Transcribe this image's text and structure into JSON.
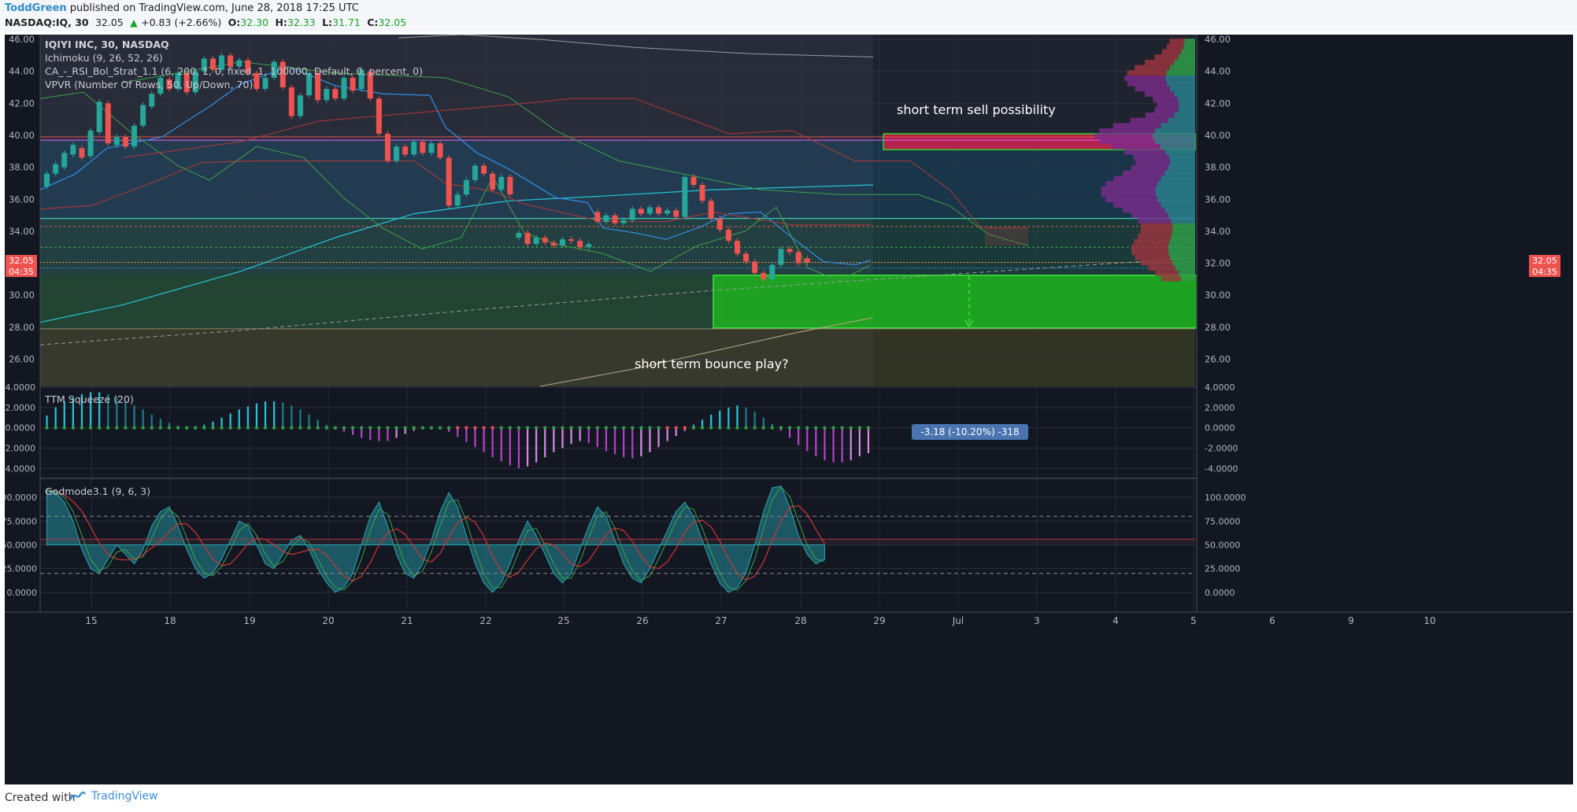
{
  "header": {
    "author": "ToddGreen",
    "published": "published on TradingView.com, June 28, 2018 17:25 UTC",
    "symbol": "NASDAQ:IQ, 30",
    "last": "32.05",
    "change": "+0.83 (+2.66%)",
    "o_label": "O:",
    "o_value": "32.30",
    "h_label": "H:",
    "h_value": "32.33",
    "l_label": "L:",
    "l_value": "31.71",
    "c_label": "C:",
    "c_value": "32.05"
  },
  "legend": {
    "symbol_line": "IQIYI INC, 30, NASDAQ",
    "ichimoku": "Ichimoku (9, 26, 52, 26)",
    "strategy": "CA_-_RSI_Bol_Strat_1.1 (6, 200, 1, 0, fixed, 1, 100000, Default, 0, percent, 0)",
    "vpvr": "VPVR (Number Of Rows, 50, Up/Down, 70)",
    "ttm": "TTM Squeeze (20)",
    "godmode": "Godmode3.1 (9, 6, 3)"
  },
  "annotations": {
    "sell": "short term sell possibility",
    "bounce": "short term bounce play?",
    "measure": "-3.18 (-10.20%) -318",
    "price_badge": "32.05",
    "time_badge": "04:35"
  },
  "footer": {
    "created_with": "Created with",
    "brand": "TradingView"
  },
  "colors": {
    "up": "#26a69a",
    "down": "#ef5350",
    "bg": "#131722",
    "accent_green": "#29c529",
    "accent_red": "#e0204a"
  },
  "chart_data": [
    {
      "type": "candlestick",
      "title": "IQIYI INC, 30, NASDAQ",
      "xlabel": "",
      "ylabel": "",
      "ylim": [
        24.3,
        46.3
      ],
      "yticks": [
        26,
        28,
        30,
        32,
        34,
        36,
        38,
        40,
        42,
        44,
        46
      ],
      "x_tick_labels": [
        "15",
        "18",
        "19",
        "20",
        "21",
        "22",
        "25",
        "26",
        "27",
        "28",
        "29",
        "Jul",
        "3",
        "4",
        "5",
        "6",
        "9",
        "10"
      ],
      "last_price": 32.05,
      "candles": [
        {
          "d": "15",
          "o": 36.8,
          "c": 37.6
        },
        {
          "d": "15",
          "o": 37.6,
          "c": 38.2
        },
        {
          "d": "15",
          "o": 38.0,
          "c": 38.9
        },
        {
          "d": "15",
          "o": 38.8,
          "c": 39.4
        },
        {
          "d": "15",
          "o": 39.2,
          "c": 38.6
        },
        {
          "d": "15",
          "o": 38.7,
          "c": 40.3
        },
        {
          "d": "15",
          "o": 40.2,
          "c": 42.1
        },
        {
          "d": "15",
          "o": 42.0,
          "c": 39.5
        },
        {
          "d": "15",
          "o": 39.4,
          "c": 39.9
        },
        {
          "d": "18",
          "o": 39.9,
          "c": 39.3
        },
        {
          "d": "18",
          "o": 39.3,
          "c": 40.6
        },
        {
          "d": "18",
          "o": 40.6,
          "c": 41.9
        },
        {
          "d": "18",
          "o": 41.8,
          "c": 42.6
        },
        {
          "d": "18",
          "o": 42.6,
          "c": 43.6
        },
        {
          "d": "18",
          "o": 43.5,
          "c": 42.9
        },
        {
          "d": "18",
          "o": 42.9,
          "c": 43.9
        },
        {
          "d": "18",
          "o": 43.9,
          "c": 42.7
        },
        {
          "d": "18",
          "o": 42.7,
          "c": 44.0
        },
        {
          "d": "19",
          "o": 44.0,
          "c": 44.8
        },
        {
          "d": "19",
          "o": 44.8,
          "c": 44.1
        },
        {
          "d": "19",
          "o": 44.1,
          "c": 45.0
        },
        {
          "d": "19",
          "o": 45.0,
          "c": 44.3
        },
        {
          "d": "19",
          "o": 44.3,
          "c": 44.7
        },
        {
          "d": "19",
          "o": 44.7,
          "c": 43.9
        },
        {
          "d": "19",
          "o": 43.9,
          "c": 42.9
        },
        {
          "d": "19",
          "o": 42.9,
          "c": 43.6
        },
        {
          "d": "19",
          "o": 43.6,
          "c": 44.6
        },
        {
          "d": "20",
          "o": 44.6,
          "c": 43.0
        },
        {
          "d": "20",
          "o": 43.0,
          "c": 41.2
        },
        {
          "d": "20",
          "o": 41.2,
          "c": 42.5
        },
        {
          "d": "20",
          "o": 42.5,
          "c": 43.9
        },
        {
          "d": "20",
          "o": 43.9,
          "c": 42.2
        },
        {
          "d": "20",
          "o": 42.2,
          "c": 42.9
        },
        {
          "d": "20",
          "o": 42.9,
          "c": 42.3
        },
        {
          "d": "20",
          "o": 42.3,
          "c": 43.6
        },
        {
          "d": "20",
          "o": 43.6,
          "c": 42.8
        },
        {
          "d": "21",
          "o": 42.9,
          "c": 44.1
        },
        {
          "d": "21",
          "o": 44.0,
          "c": 42.3
        },
        {
          "d": "21",
          "o": 42.3,
          "c": 40.1
        },
        {
          "d": "21",
          "o": 40.1,
          "c": 38.4
        },
        {
          "d": "21",
          "o": 38.4,
          "c": 39.3
        },
        {
          "d": "21",
          "o": 39.3,
          "c": 38.8
        },
        {
          "d": "21",
          "o": 38.8,
          "c": 39.6
        },
        {
          "d": "21",
          "o": 39.6,
          "c": 38.9
        },
        {
          "d": "21",
          "o": 38.9,
          "c": 39.5
        },
        {
          "d": "22",
          "o": 39.5,
          "c": 38.6
        },
        {
          "d": "22",
          "o": 38.6,
          "c": 35.6
        },
        {
          "d": "22",
          "o": 35.6,
          "c": 36.3
        },
        {
          "d": "22",
          "o": 36.3,
          "c": 37.2
        },
        {
          "d": "22",
          "o": 37.2,
          "c": 38.1
        },
        {
          "d": "22",
          "o": 38.1,
          "c": 37.6
        },
        {
          "d": "22",
          "o": 37.6,
          "c": 36.6
        },
        {
          "d": "22",
          "o": 36.6,
          "c": 37.4
        },
        {
          "d": "22",
          "o": 37.4,
          "c": 36.3
        },
        {
          "d": "25",
          "o": 33.6,
          "c": 33.9
        },
        {
          "d": "25",
          "o": 33.9,
          "c": 33.2
        },
        {
          "d": "25",
          "o": 33.2,
          "c": 33.6
        },
        {
          "d": "25",
          "o": 33.6,
          "c": 33.3
        },
        {
          "d": "25",
          "o": 33.3,
          "c": 33.1
        },
        {
          "d": "25",
          "o": 33.1,
          "c": 33.5
        },
        {
          "d": "25",
          "o": 33.5,
          "c": 33.4
        },
        {
          "d": "25",
          "o": 33.4,
          "c": 33.0
        },
        {
          "d": "25",
          "o": 33.0,
          "c": 33.2
        },
        {
          "d": "26",
          "o": 35.2,
          "c": 34.6
        },
        {
          "d": "26",
          "o": 34.6,
          "c": 35.0
        },
        {
          "d": "26",
          "o": 35.0,
          "c": 34.5
        },
        {
          "d": "26",
          "o": 34.5,
          "c": 34.7
        },
        {
          "d": "26",
          "o": 34.7,
          "c": 35.4
        },
        {
          "d": "26",
          "o": 35.4,
          "c": 35.1
        },
        {
          "d": "26",
          "o": 35.1,
          "c": 35.5
        },
        {
          "d": "26",
          "o": 35.5,
          "c": 35.1
        },
        {
          "d": "26",
          "o": 35.1,
          "c": 35.3
        },
        {
          "d": "27",
          "o": 35.3,
          "c": 34.9
        },
        {
          "d": "27",
          "o": 34.9,
          "c": 37.4
        },
        {
          "d": "27",
          "o": 37.4,
          "c": 36.9
        },
        {
          "d": "27",
          "o": 36.9,
          "c": 35.9
        },
        {
          "d": "27",
          "o": 35.9,
          "c": 34.8
        },
        {
          "d": "27",
          "o": 34.8,
          "c": 34.1
        },
        {
          "d": "27",
          "o": 34.1,
          "c": 33.4
        },
        {
          "d": "27",
          "o": 33.4,
          "c": 32.6
        },
        {
          "d": "27",
          "o": 32.6,
          "c": 32.1
        },
        {
          "d": "28",
          "o": 32.1,
          "c": 31.4
        },
        {
          "d": "28",
          "o": 31.4,
          "c": 31.0
        },
        {
          "d": "28",
          "o": 31.0,
          "c": 31.9
        },
        {
          "d": "28",
          "o": 31.9,
          "c": 32.9
        },
        {
          "d": "28",
          "o": 32.9,
          "c": 32.7
        },
        {
          "d": "28",
          "o": 32.7,
          "c": 32.0
        },
        {
          "d": "28",
          "o": 32.3,
          "c": 32.05
        }
      ],
      "zones": [
        {
          "label": "short term sell possibility",
          "from": 39.1,
          "to": 40.1,
          "color": "#e0204a"
        },
        {
          "label": "short term bounce play?",
          "from": 27.95,
          "to": 31.25,
          "color": "#29c529"
        }
      ],
      "measure": {
        "label": "-3.18 (-10.20%) -318",
        "from": 31.2,
        "to": 28.0
      }
    },
    {
      "type": "bar",
      "title": "TTM Squeeze (20)",
      "ylim": [
        -4.9,
        4.0
      ],
      "yticks": [
        4,
        2,
        0,
        -2,
        -4
      ],
      "ytick_labels": [
        "4.0000",
        "2.0000",
        "0.0000",
        "-2.0000",
        "-4.0000"
      ],
      "values": [
        1.2,
        2.0,
        2.6,
        3.0,
        3.3,
        3.5,
        3.5,
        3.3,
        3.0,
        2.6,
        2.2,
        1.8,
        1.3,
        0.9,
        0.5,
        0.2,
        0.05,
        0.1,
        0.3,
        0.6,
        1.0,
        1.4,
        1.8,
        2.1,
        2.4,
        2.6,
        2.6,
        2.5,
        2.2,
        1.8,
        1.3,
        0.8,
        0.3,
        -0.1,
        -0.4,
        -0.7,
        -1.0,
        -1.2,
        -1.3,
        -1.3,
        -1.0,
        -0.6,
        -0.3,
        -0.1,
        -0.05,
        -0.1,
        -0.4,
        -0.9,
        -1.4,
        -1.9,
        -2.4,
        -2.9,
        -3.3,
        -3.7,
        -4.0,
        -3.8,
        -3.4,
        -2.9,
        -2.4,
        -2.0,
        -1.6,
        -1.3,
        -1.5,
        -1.9,
        -2.3,
        -2.6,
        -2.9,
        -3.0,
        -2.8,
        -2.4,
        -1.9,
        -1.3,
        -0.8,
        -0.3,
        0.3,
        0.8,
        1.3,
        1.7,
        2.0,
        2.2,
        2.0,
        1.6,
        1.0,
        0.4,
        -0.3,
        -1.0,
        -1.7,
        -2.3,
        -2.8,
        -3.2,
        -3.4,
        -3.4,
        -3.2,
        -2.8,
        -2.5
      ]
    },
    {
      "type": "line",
      "title": "Godmode3.1 (9, 6, 3)",
      "ylim": [
        -20,
        120
      ],
      "yticks": [
        100,
        75,
        50,
        25,
        0
      ],
      "ytick_labels": [
        "100.0000",
        "75.0000",
        "50.0000",
        "25.0000",
        "0.0000"
      ],
      "series": [
        {
          "values": [
            108,
            105,
            95,
            75,
            45,
            25,
            20,
            35,
            50,
            40,
            30,
            45,
            70,
            85,
            90,
            70,
            45,
            25,
            15,
            20,
            35,
            55,
            75,
            70,
            50,
            30,
            25,
            40,
            55,
            60,
            45,
            25,
            10,
            0,
            5,
            20,
            50,
            80,
            95,
            70,
            40,
            20,
            15,
            30,
            55,
            85,
            105,
            90,
            60,
            30,
            10,
            0,
            10,
            30,
            55,
            75,
            60,
            40,
            20,
            10,
            20,
            45,
            70,
            90,
            80,
            55,
            30,
            15,
            10,
            25,
            45,
            65,
            85,
            95,
            80,
            55,
            30,
            10,
            0,
            5,
            20,
            50,
            85,
            110,
            112,
            90,
            60,
            40,
            30,
            35
          ]
        }
      ]
    }
  ]
}
